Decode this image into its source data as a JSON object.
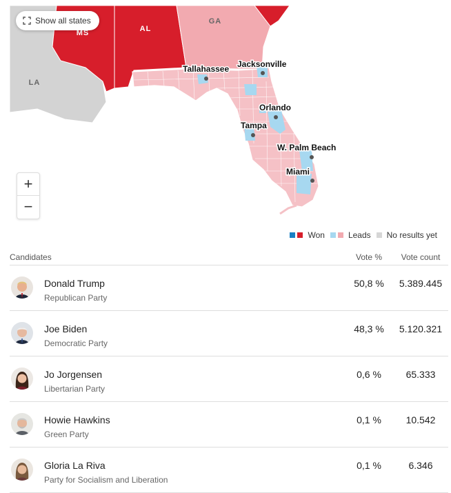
{
  "map": {
    "show_all_label": "Show all states",
    "states": [
      "MS",
      "AL",
      "GA",
      "LA"
    ],
    "cities": [
      "Tallahassee",
      "Jacksonville",
      "Orlando",
      "Tampa",
      "W. Palm Beach",
      "Miami"
    ],
    "zoom_in": "+",
    "zoom_out": "−",
    "colors": {
      "rep_won": "#d71e2b",
      "rep_leads": "#f2aab0",
      "rep_leads_fl": "#f5c1c6",
      "dem_leads": "#a7d8f0",
      "no_results": "#d3d3d3"
    }
  },
  "legend": {
    "won": "Won",
    "leads": "Leads",
    "no_results": "No results yet",
    "colors": {
      "dem_won": "#1a80c4",
      "rep_won": "#d71e2b",
      "dem_leads": "#a7d8f0",
      "rep_leads": "#f2aab0",
      "no_results": "#d6d6d6"
    }
  },
  "table": {
    "headers": {
      "candidates": "Candidates",
      "vote_pct": "Vote %",
      "vote_count": "Vote count"
    },
    "rows": [
      {
        "name": "Donald Trump",
        "party": "Republican Party",
        "pct": "50,8 %",
        "count": "5.389.445",
        "avatar": "trump-avatar"
      },
      {
        "name": "Joe Biden",
        "party": "Democratic Party",
        "pct": "48,3 %",
        "count": "5.120.321",
        "avatar": "biden-avatar"
      },
      {
        "name": "Jo Jorgensen",
        "party": "Libertarian Party",
        "pct": "0,6 %",
        "count": "65.333",
        "avatar": "jorgensen-avatar"
      },
      {
        "name": "Howie Hawkins",
        "party": "Green Party",
        "pct": "0,1 %",
        "count": "10.542",
        "avatar": "hawkins-avatar"
      },
      {
        "name": "Gloria La Riva",
        "party": "Party for Socialism and Liberation",
        "pct": "0,1 %",
        "count": "6.346",
        "avatar": "lariva-avatar"
      }
    ]
  }
}
